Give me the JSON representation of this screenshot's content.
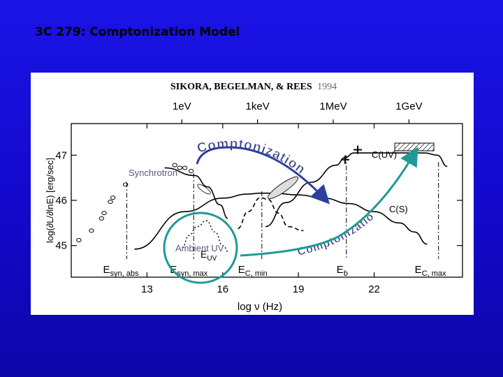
{
  "slide": {
    "title": "3C 279: Comptonization Model"
  },
  "figure": {
    "citation_authors": "SIKORA, BEGELMAN, & REES",
    "citation_year": "1994"
  },
  "colors": {
    "background": "#1a14e6",
    "arrow_blue": "#2b3f9c",
    "arrow_green": "#1e9a94",
    "overlay_text": "#5a5a78",
    "comptonization_text": "#3a3f82"
  },
  "chart_data": {
    "type": "line",
    "xlabel": "log ν (Hz)",
    "ylabel": "log(∂L/∂lnE) [erg/sec]",
    "xlim": [
      10,
      25.5
    ],
    "ylim": [
      44.3,
      47.7
    ],
    "x_ticks": [
      13,
      16,
      19,
      22
    ],
    "y_ticks": [
      45,
      46,
      47
    ],
    "top_axis_ticks": [
      {
        "label": "1eV",
        "x": 14.38
      },
      {
        "label": "1keV",
        "x": 17.38
      },
      {
        "label": "1MeV",
        "x": 20.38
      },
      {
        "label": "1GeV",
        "x": 23.38
      }
    ],
    "grid": false,
    "series": [
      {
        "name": "",
        "x": [
          13.7,
          14.9,
          15.4,
          15.9,
          16.2
        ],
        "y": [
          46.72,
          46.55,
          46.3,
          45.9,
          45.6
        ]
      },
      {
        "name": "C(S)",
        "x": [
          12.5,
          14.5,
          16.0,
          17.0,
          17.5,
          18.0,
          19.0,
          20.0,
          21.0,
          22.0,
          23.0,
          23.6,
          24.1
        ],
        "y": [
          44.92,
          45.75,
          46.05,
          46.14,
          46.16,
          46.16,
          46.12,
          46.05,
          45.93,
          45.75,
          45.5,
          45.3,
          45.03
        ]
      },
      {
        "name": "",
        "x": [
          16.6,
          17.0,
          17.5,
          17.8,
          18.2,
          18.6,
          19.2
        ],
        "y": [
          45.38,
          45.75,
          46.06,
          46.02,
          45.72,
          45.42,
          45.33
        ]
      },
      {
        "name": "C(UV)",
        "x": [
          17.7,
          18.5,
          19.5,
          20.5,
          20.85,
          21.2,
          22.0,
          23.0,
          24.0,
          24.5,
          24.9
        ],
        "y": [
          45.42,
          45.95,
          46.4,
          46.78,
          46.95,
          47.05,
          47.05,
          47.05,
          47.05,
          47.0,
          46.75
        ]
      },
      {
        "name": "",
        "x": [
          14.4,
          14.65,
          15.0,
          15.35,
          15.7,
          16.0,
          16.25
        ],
        "y": [
          44.95,
          45.22,
          45.42,
          45.55,
          45.3,
          45.0,
          44.85
        ]
      }
    ],
    "data_points": [
      {
        "x": 10.3,
        "y": 45.12
      },
      {
        "x": 10.8,
        "y": 45.33
      },
      {
        "x": 11.2,
        "y": 45.6
      },
      {
        "x": 11.3,
        "y": 45.72
      },
      {
        "x": 11.55,
        "y": 45.97
      },
      {
        "x": 11.65,
        "y": 46.06
      },
      {
        "x": 12.15,
        "y": 46.35
      },
      {
        "x": 14.1,
        "y": 46.78
      },
      {
        "x": 14.3,
        "y": 46.72
      },
      {
        "x": 14.5,
        "y": 46.72
      },
      {
        "x": 14.75,
        "y": 46.65
      },
      {
        "x": 20.85,
        "y": 46.9
      },
      {
        "x": 21.35,
        "y": 47.12
      }
    ],
    "markers": [
      {
        "label": "E",
        "sub": "syn, abs",
        "x": 12.2
      },
      {
        "label": "E",
        "sub": "syn, max",
        "x": 14.85
      },
      {
        "label": "E",
        "sub": "C, min",
        "x": 17.55
      },
      {
        "label": "E",
        "sub": "b",
        "x": 20.9
      },
      {
        "label": "E",
        "sub": "C, max",
        "x": 24.55
      }
    ],
    "annotations": [
      "Synchrotron",
      "C(UV)",
      "C(S)",
      "E",
      "UV",
      "Comptonization",
      "Ambient UV",
      "Comptonization"
    ]
  }
}
